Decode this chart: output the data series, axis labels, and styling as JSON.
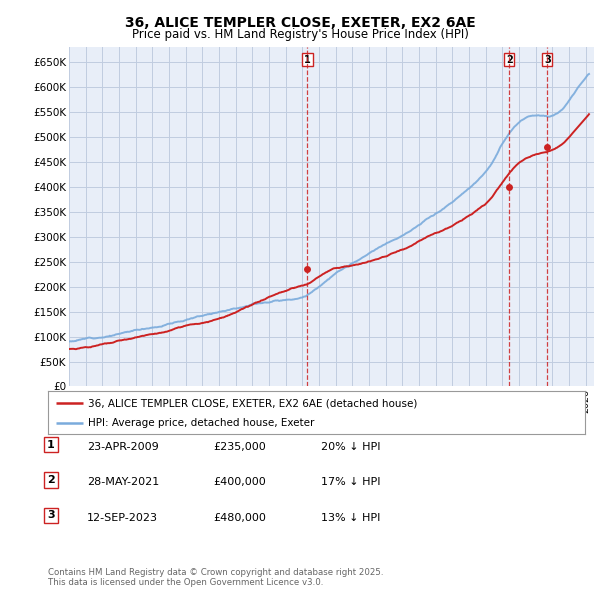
{
  "title": "36, ALICE TEMPLER CLOSE, EXETER, EX2 6AE",
  "subtitle": "Price paid vs. HM Land Registry's House Price Index (HPI)",
  "ylim": [
    0,
    680000
  ],
  "yticks": [
    0,
    50000,
    100000,
    150000,
    200000,
    250000,
    300000,
    350000,
    400000,
    450000,
    500000,
    550000,
    600000,
    650000
  ],
  "ytick_labels": [
    "£0",
    "£50K",
    "£100K",
    "£150K",
    "£200K",
    "£250K",
    "£300K",
    "£350K",
    "£400K",
    "£450K",
    "£500K",
    "£550K",
    "£600K",
    "£650K"
  ],
  "bg_color": "#e8eef8",
  "grid_color": "#c0cce0",
  "line_color_hpi": "#7aabdc",
  "line_color_price": "#cc2222",
  "transactions": [
    {
      "date_num": 2009.31,
      "price": 235000,
      "label": "1"
    },
    {
      "date_num": 2021.41,
      "price": 400000,
      "label": "2"
    },
    {
      "date_num": 2023.7,
      "price": 480000,
      "label": "3"
    }
  ],
  "legend_price_label": "36, ALICE TEMPLER CLOSE, EXETER, EX2 6AE (detached house)",
  "legend_hpi_label": "HPI: Average price, detached house, Exeter",
  "table_rows": [
    {
      "num": "1",
      "date": "23-APR-2009",
      "price": "£235,000",
      "pct": "20% ↓ HPI"
    },
    {
      "num": "2",
      "date": "28-MAY-2021",
      "price": "£400,000",
      "pct": "17% ↓ HPI"
    },
    {
      "num": "3",
      "date": "12-SEP-2023",
      "price": "£480,000",
      "pct": "13% ↓ HPI"
    }
  ],
  "footer": "Contains HM Land Registry data © Crown copyright and database right 2025.\nThis data is licensed under the Open Government Licence v3.0."
}
